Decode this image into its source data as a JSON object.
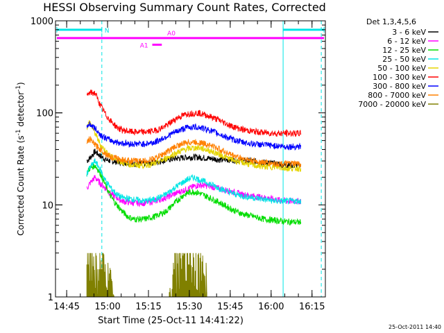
{
  "chart_data": {
    "type": "line",
    "title": "HESSI Observing Summary Count Rates, Corrected",
    "ylabel_main": "Corrected Count Rate (s",
    "ylabel_sup1": "-1",
    "ylabel_mid": " detector",
    "ylabel_sup2": "-1",
    "ylabel_end": ")",
    "xlabel": "Start Time (25-Oct-11 14:41:22)",
    "stamp": "25-Oct-2011 14:40",
    "yscale": "log",
    "ylim": [
      1,
      1000
    ],
    "xlim_minutes": [
      -0.5,
      98.5
    ],
    "x_unit": "minutes after 14:41:22",
    "y_ticks": [
      {
        "value": 1,
        "label": "1"
      },
      {
        "value": 10,
        "label": "10"
      },
      {
        "value": 100,
        "label": "100"
      },
      {
        "value": 1000,
        "label": "1000"
      }
    ],
    "x_ticks": [
      {
        "value": 3.6,
        "label": "14:45"
      },
      {
        "value": 18.6,
        "label": "15:00"
      },
      {
        "value": 33.6,
        "label": "15:15"
      },
      {
        "value": 48.6,
        "label": "15:30"
      },
      {
        "value": 63.6,
        "label": "15:45"
      },
      {
        "value": 78.6,
        "label": "16:00"
      },
      {
        "value": 93.6,
        "label": "16:15"
      }
    ],
    "legend_title": "Det 1,3,4,5,6",
    "legend_position": "right",
    "series": [
      {
        "name": "3 - 6 keV",
        "color": "#000000",
        "x": [
          11,
          12,
          14,
          16,
          18,
          20,
          24,
          28,
          32,
          36,
          40,
          44,
          48,
          52,
          56,
          60,
          64,
          68,
          72,
          76,
          80,
          84,
          88,
          89.5
        ],
        "y": [
          30,
          32,
          38,
          34,
          31,
          30,
          29,
          28,
          28,
          29,
          31,
          32,
          33,
          33,
          32,
          31,
          31,
          30,
          30,
          29,
          28,
          27,
          27,
          27
        ]
      },
      {
        "name": "6 - 12 keV",
        "color": "#ff00ff",
        "x": [
          11,
          12,
          14,
          16,
          18,
          20,
          22,
          24,
          28,
          32,
          36,
          40,
          44,
          48,
          52,
          56,
          60,
          64,
          68,
          72,
          76,
          80,
          84,
          88,
          89.5
        ],
        "y": [
          15,
          17,
          20,
          17,
          15,
          13,
          12,
          11,
          10.5,
          10.5,
          11,
          12,
          13.5,
          15,
          16.5,
          16,
          15,
          14,
          13,
          12.5,
          12,
          11.5,
          11,
          11,
          11
        ]
      },
      {
        "name": "12 - 25 keV",
        "color": "#00dd00",
        "x": [
          11,
          12,
          14,
          16,
          18,
          20,
          22,
          24,
          26,
          28,
          32,
          36,
          40,
          44,
          46,
          48,
          50,
          52,
          56,
          60,
          64,
          68,
          72,
          76,
          80,
          84,
          88,
          89.5
        ],
        "y": [
          22,
          25,
          27,
          22,
          16,
          12,
          10,
          8.5,
          7.5,
          7,
          7,
          7.5,
          8.5,
          11,
          12.5,
          13.5,
          14,
          13.5,
          12,
          10.5,
          9,
          8,
          7.5,
          7,
          6.8,
          6.6,
          6.5,
          6.5
        ]
      },
      {
        "name": "25 - 50 keV",
        "color": "#00e5e5",
        "x": [
          11,
          12,
          14,
          16,
          18,
          20,
          22,
          24,
          28,
          32,
          36,
          40,
          44,
          48,
          50,
          52,
          56,
          60,
          64,
          68,
          72,
          76,
          80,
          84,
          88,
          89.5
        ],
        "y": [
          22,
          25,
          30,
          24,
          18,
          15,
          13,
          12,
          11.5,
          11,
          11.5,
          13,
          16,
          19,
          20,
          19,
          17,
          15,
          13.5,
          12.5,
          12,
          11.5,
          11,
          11,
          11,
          11
        ]
      },
      {
        "name": "50 - 100 keV",
        "color": "#e5d400",
        "x": [
          11,
          12,
          14,
          16,
          18,
          20,
          24,
          28,
          32,
          36,
          40,
          44,
          48,
          52,
          56,
          60,
          64,
          68,
          72,
          76,
          80,
          84,
          88,
          89.5
        ],
        "y": [
          70,
          80,
          60,
          45,
          38,
          33,
          29,
          27,
          27,
          28,
          32,
          37,
          41,
          42,
          39,
          35,
          31,
          29,
          27,
          26,
          26,
          25,
          25,
          25
        ]
      },
      {
        "name": "100 - 300 keV",
        "color": "#ff0000",
        "x": [
          11,
          12,
          14,
          16,
          18,
          20,
          22,
          24,
          28,
          32,
          36,
          40,
          44,
          48,
          52,
          56,
          60,
          64,
          68,
          72,
          76,
          80,
          84,
          88,
          89.5
        ],
        "y": [
          150,
          165,
          165,
          120,
          95,
          80,
          70,
          65,
          62,
          62,
          64,
          72,
          88,
          98,
          100,
          92,
          82,
          72,
          66,
          63,
          61,
          60,
          60,
          60,
          60
        ]
      },
      {
        "name": "300 - 800 keV",
        "color": "#0000ff",
        "x": [
          11,
          12,
          14,
          16,
          18,
          20,
          22,
          24,
          28,
          32,
          36,
          40,
          44,
          48,
          52,
          56,
          60,
          64,
          68,
          72,
          76,
          80,
          84,
          88,
          89.5
        ],
        "y": [
          72,
          76,
          68,
          58,
          53,
          50,
          48,
          47,
          46,
          46,
          48,
          55,
          63,
          70,
          70,
          65,
          58,
          52,
          48,
          46,
          45,
          44,
          43,
          43,
          43
        ]
      },
      {
        "name": "800 - 7000 keV",
        "color": "#ff8000",
        "x": [
          11,
          12,
          14,
          16,
          18,
          20,
          24,
          28,
          32,
          36,
          40,
          44,
          48,
          52,
          56,
          60,
          64,
          68,
          72,
          76,
          80,
          84,
          88,
          89.5
        ],
        "y": [
          48,
          52,
          45,
          40,
          36,
          33,
          31,
          30,
          30,
          32,
          37,
          44,
          48,
          48,
          45,
          40,
          35,
          32,
          30,
          29,
          28,
          28,
          28,
          28
        ]
      },
      {
        "name": "7000 - 20000 keV",
        "color": "#808000",
        "x": [
          11,
          13,
          15,
          17,
          19,
          21,
          41,
          43,
          45,
          47,
          49,
          51,
          53,
          55
        ],
        "y": [
          3,
          3,
          2,
          2,
          1.5,
          1,
          1,
          2,
          2.5,
          3,
          3,
          2.5,
          2,
          1.5
        ]
      }
    ],
    "annotations": [
      {
        "label": "N",
        "color": "#00e5e5"
      },
      {
        "label": "A0",
        "color": "#ff00ff"
      },
      {
        "label": "A1",
        "color": "#ff00ff"
      }
    ],
    "bars": [
      {
        "kind": "night",
        "color": "#00e5e5",
        "y": 800,
        "from": 0,
        "to": 16.5
      },
      {
        "kind": "night",
        "color": "#00e5e5",
        "y": 800,
        "from": 83,
        "to": 98
      },
      {
        "kind": "attenuator",
        "color": "#ff00ff",
        "y": 650,
        "from": 0,
        "to": 98
      },
      {
        "kind": "attenuator",
        "color": "#ff00ff",
        "y": 550,
        "from": 35,
        "to": 38.5
      }
    ],
    "vlines": [
      {
        "x": 16.5,
        "color": "#00e5e5",
        "style": "dashed"
      },
      {
        "x": 83,
        "color": "#00e5e5",
        "style": "solid"
      },
      {
        "x": 97,
        "color": "#00e5e5",
        "style": "dashed"
      }
    ]
  }
}
